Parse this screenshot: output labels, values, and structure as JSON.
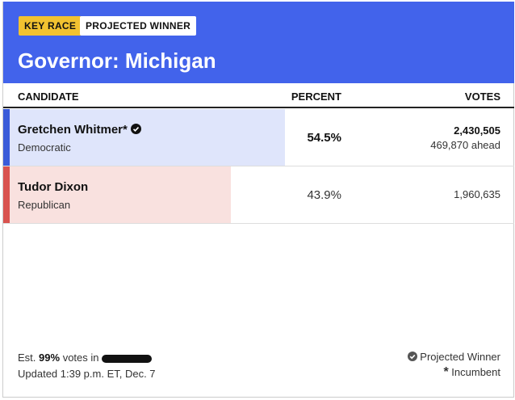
{
  "header": {
    "badges": [
      "KEY RACE",
      "PROJECTED WINNER"
    ],
    "title": "Governor: Michigan"
  },
  "table": {
    "columns": [
      "CANDIDATE",
      "PERCENT",
      "VOTES"
    ],
    "rows": [
      {
        "name": "Gretchen Whitmer*",
        "party": "Democratic",
        "percent": 54.5,
        "percent_label": "54.5%",
        "votes": "2,430,505",
        "ahead": "469,870 ahead",
        "color": "#3a5bd9",
        "bg": "#dfe5fb",
        "winner": true
      },
      {
        "name": "Tudor Dixon",
        "party": "Republican",
        "percent": 43.9,
        "percent_label": "43.9%",
        "votes": "1,960,635",
        "color": "#d9534f",
        "bg": "#f9e1df",
        "winner": false
      }
    ]
  },
  "footer": {
    "est_prefix": "Est.",
    "est_value": "99%",
    "est_suffix": "votes in",
    "updated": "Updated 1:39 p.m. ET, Dec. 7",
    "legend": [
      "Projected Winner",
      "Incumbent"
    ]
  }
}
